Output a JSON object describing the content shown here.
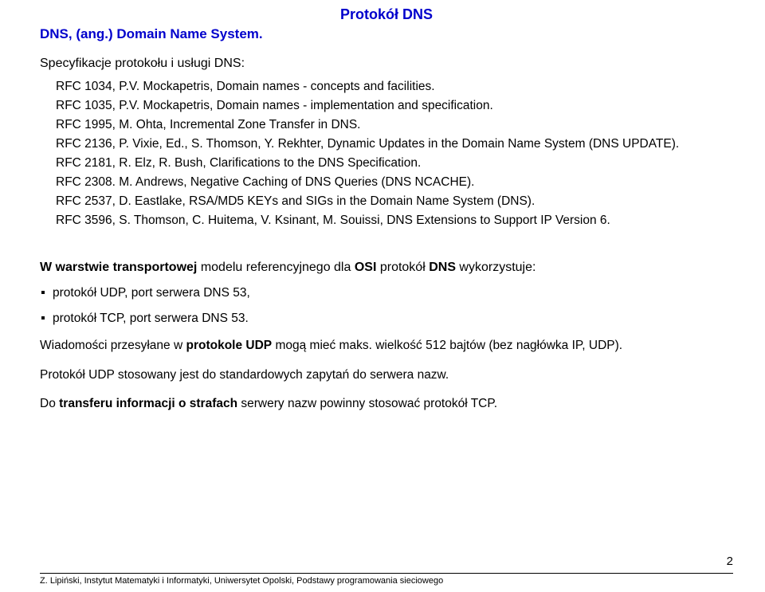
{
  "title": "Protokół DNS",
  "subtitle": "DNS, (ang.) Domain Name System.",
  "specLabel": "Specyfikacje protokołu i usługi DNS:",
  "rfcs": [
    "RFC 1034, P.V. Mockapetris, Domain names - concepts and facilities.",
    "RFC 1035, P.V. Mockapetris, Domain names - implementation and specification.",
    "RFC 1995, M. Ohta, Incremental Zone Transfer in DNS.",
    "RFC 2136, P. Vixie, Ed., S. Thomson, Y. Rekhter, Dynamic Updates in the Domain Name System (DNS UPDATE).",
    "RFC 2181, R. Elz, R. Bush, Clarifications to the DNS Specification.",
    "RFC 2308. M. Andrews, Negative Caching of DNS Queries (DNS NCACHE).",
    "RFC 2537, D. Eastlake, RSA/MD5 KEYs and SIGs in the Domain Name System (DNS).",
    "RFC 3596, S. Thomson, C. Huitema, V. Ksinant, M. Souissi, DNS Extensions to Support IP Version 6."
  ],
  "transportHeading": {
    "prefix": "W warstwie transportowej modelu referencyjnego dla OSI protokół DNS wykorzystuje:",
    "boldParts": [
      "W warstwie transportowej",
      "OSI",
      "DNS"
    ]
  },
  "bullets": [
    "protokół UDP, port serwera DNS 53,",
    "protokół TCP, port serwera DNS 53."
  ],
  "udpLine": {
    "pre": "Wiadomości przesyłane w ",
    "bold": "protokole UDP",
    "post": " mogą mieć maks. wielkość 512 bajtów (bez nagłówka IP, UDP)."
  },
  "stdLine": "Protokół UDP stosowany jest do standardowych zapytań do serwera nazw.",
  "tcpLine": {
    "pre": "Do ",
    "bold": "transferu informacji o strafach",
    "post": " serwery nazw powinny stosować protokół TCP."
  },
  "footer": "Z. Lipiński, Instytut Matematyki i Informatyki, Uniwersytet Opolski, Podstawy programowania sieciowego",
  "pageNumber": "2"
}
